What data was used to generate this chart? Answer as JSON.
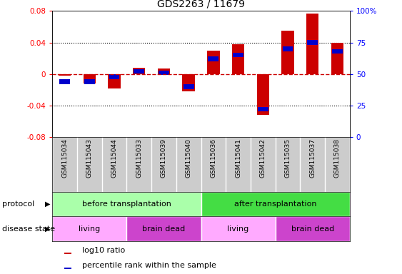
{
  "title": "GDS2263 / 11679",
  "samples": [
    "GSM115034",
    "GSM115043",
    "GSM115044",
    "GSM115033",
    "GSM115039",
    "GSM115040",
    "GSM115036",
    "GSM115041",
    "GSM115042",
    "GSM115035",
    "GSM115037",
    "GSM115038"
  ],
  "log10_ratio": [
    -0.002,
    -0.012,
    -0.018,
    0.008,
    0.007,
    -0.022,
    0.03,
    0.038,
    -0.052,
    0.055,
    0.077,
    0.04
  ],
  "percentile_rank": [
    44,
    44,
    48,
    52,
    51,
    40,
    62,
    65,
    22,
    70,
    75,
    68
  ],
  "ylim_left": [
    -0.08,
    0.08
  ],
  "ylim_right": [
    0,
    100
  ],
  "yticks_left": [
    -0.08,
    -0.04,
    0,
    0.04,
    0.08
  ],
  "yticks_right": [
    0,
    25,
    50,
    75,
    100
  ],
  "bar_color_red": "#cc0000",
  "bar_color_blue": "#0000cc",
  "dashed_line_color": "#cc0000",
  "protocol_before_count": 6,
  "protocol_after_count": 6,
  "protocol_before_label": "before transplantation",
  "protocol_after_label": "after transplantation",
  "protocol_before_color": "#aaffaa",
  "protocol_after_color": "#44dd44",
  "living_before_count": 3,
  "brain_dead_before_count": 3,
  "living_after_count": 3,
  "brain_dead_after_count": 3,
  "disease_living_color": "#ffaaff",
  "disease_brain_dead_color": "#cc44cc",
  "disease_living_label": "living",
  "disease_brain_dead_label": "brain dead",
  "legend_red_label": "log10 ratio",
  "legend_blue_label": "percentile rank within the sample",
  "bg_color": "#ffffff",
  "tick_label_area_color": "#cccccc",
  "dotted_line_color": "#000000",
  "right_tick_labels": [
    "0",
    "25",
    "50",
    "75",
    "100%"
  ]
}
